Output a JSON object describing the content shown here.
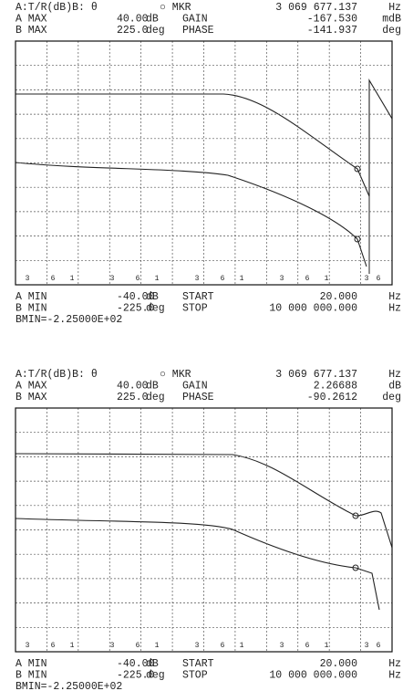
{
  "panels": [
    {
      "header": [
        [
          "A:T/R(dB)B: θ",
          "○ MKR",
          "3 069 677.137",
          "Hz"
        ],
        [
          "A MAX",
          "40.00",
          "dB",
          "GAIN",
          "-167.530",
          "mdB"
        ],
        [
          "B MAX",
          "225.0",
          "deg",
          "PHASE",
          "-141.937",
          "deg"
        ]
      ],
      "axis_labels": [
        "3",
        "6",
        "1",
        "3",
        "6",
        "1",
        "3",
        "6",
        "1",
        "3",
        "6",
        "1",
        "3",
        "6"
      ],
      "footer": [
        [
          "A MIN",
          "-40.00",
          "dB",
          "START",
          "20.000",
          "Hz"
        ],
        [
          "B MIN",
          "-225.0",
          "deg",
          "STOP",
          "10 000 000.000",
          "Hz"
        ],
        [
          "BMIN=-2.25000E+02"
        ]
      ]
    },
    {
      "header": [
        [
          "A:T/R(dB)B: θ",
          "○ MKR",
          "3 069 677.137",
          "Hz"
        ],
        [
          "A MAX",
          "40.00",
          "dB",
          "GAIN",
          "2.26688",
          "dB"
        ],
        [
          "B MAX",
          "225.0",
          "deg",
          "PHASE",
          "-90.2612",
          "deg"
        ]
      ],
      "axis_labels": [
        "3",
        "6",
        "1",
        "3",
        "6",
        "1",
        "3",
        "6",
        "1",
        "3",
        "6",
        "1",
        "3",
        "6"
      ],
      "footer": [
        [
          "A MIN",
          "-40.00",
          "dB",
          "START",
          "20.000",
          "Hz"
        ],
        [
          "B MIN",
          "-225.0",
          "deg",
          "STOP",
          "10 000 000.000",
          "Hz"
        ],
        [
          "BMIN=-2.25000E+02"
        ]
      ]
    }
  ]
}
